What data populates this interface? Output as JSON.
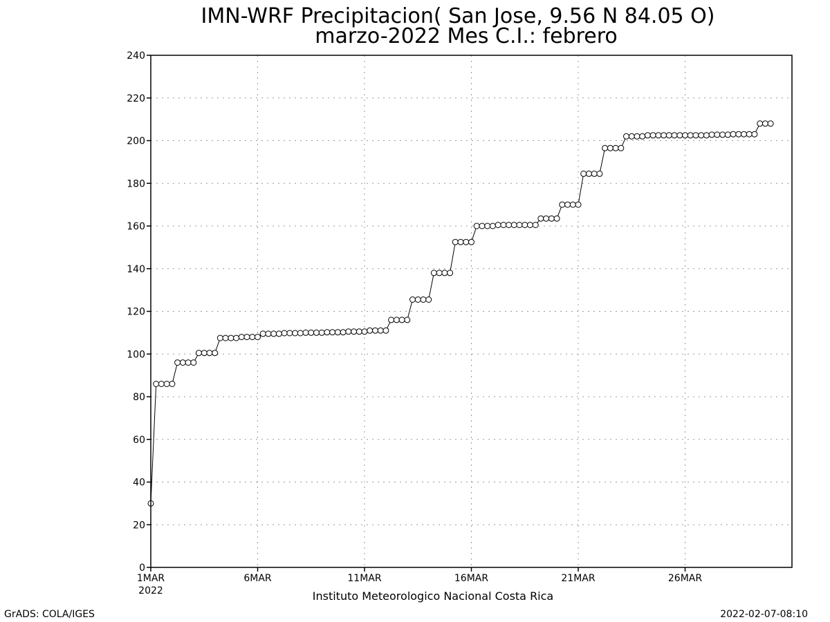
{
  "footer": {
    "left": "GrADS: COLA/IGES",
    "right": "2022-02-07-08:10"
  },
  "chart_data": {
    "type": "line",
    "title": "IMN-WRF  Precipitacion( San Jose, 9.56  N 84.05  O)",
    "subtitle": "marzo-2022 Mes C.I.: febrero",
    "xlabel": "Instituto Meteorologico Nacional Costa Rica",
    "ylabel": "",
    "x_unit": "days since 1MAR 2022 (6-hourly steps)",
    "xlim": [
      0,
      30
    ],
    "ylim": [
      0,
      240
    ],
    "y_ticks": [
      0,
      20,
      40,
      60,
      80,
      100,
      120,
      140,
      160,
      180,
      200,
      220,
      240
    ],
    "x_ticks": [
      {
        "day": 0,
        "label": "1MAR",
        "sublabel": "2022"
      },
      {
        "day": 5,
        "label": "6MAR",
        "sublabel": ""
      },
      {
        "day": 10,
        "label": "11MAR",
        "sublabel": ""
      },
      {
        "day": 15,
        "label": "16MAR",
        "sublabel": ""
      },
      {
        "day": 20,
        "label": "21MAR",
        "sublabel": ""
      },
      {
        "day": 25,
        "label": "26MAR",
        "sublabel": ""
      }
    ],
    "grid": true,
    "marker": "open-circle",
    "series": [
      {
        "name": "",
        "step_days": 0.25,
        "values": [
          30,
          86,
          86,
          86,
          86,
          96,
          96,
          96,
          96,
          100.5,
          100.5,
          100.5,
          100.5,
          107.5,
          107.5,
          107.5,
          107.5,
          108,
          108,
          108,
          108,
          109.5,
          109.5,
          109.5,
          109.5,
          109.8,
          109.8,
          109.8,
          109.8,
          110,
          110,
          110,
          110,
          110.2,
          110.2,
          110.2,
          110.2,
          110.5,
          110.5,
          110.5,
          110.5,
          111,
          111,
          111,
          111,
          116,
          116,
          116,
          116,
          125.5,
          125.5,
          125.5,
          125.5,
          138,
          138,
          138,
          138,
          152.5,
          152.5,
          152.5,
          152.5,
          160,
          160,
          160,
          160,
          160.5,
          160.5,
          160.5,
          160.5,
          160.5,
          160.5,
          160.5,
          160.5,
          163.5,
          163.5,
          163.5,
          163.5,
          170,
          170,
          170,
          170,
          184.5,
          184.5,
          184.5,
          184.5,
          196.5,
          196.5,
          196.5,
          196.5,
          202,
          202,
          202,
          202,
          202.5,
          202.5,
          202.5,
          202.5,
          202.5,
          202.5,
          202.5,
          202.5,
          202.5,
          202.5,
          202.5,
          202.5,
          202.8,
          202.8,
          202.8,
          202.8,
          203,
          203,
          203,
          203,
          203,
          208,
          208,
          208
        ]
      }
    ]
  }
}
